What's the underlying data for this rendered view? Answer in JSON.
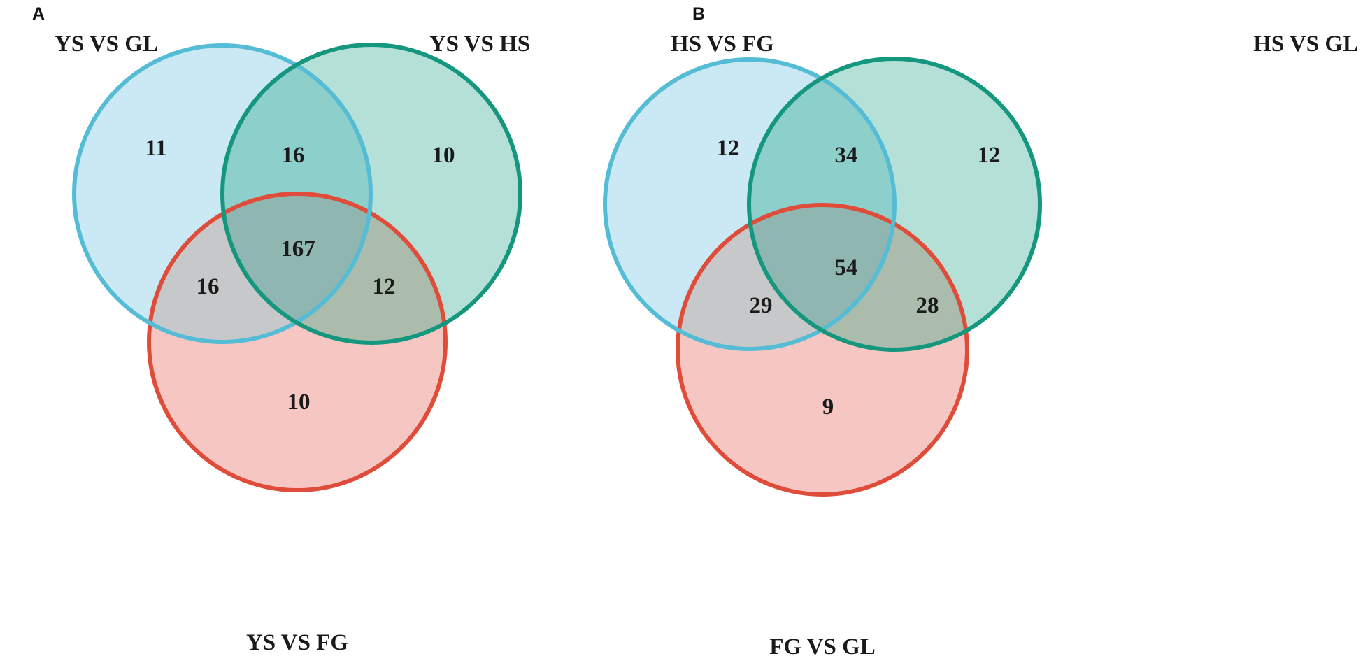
{
  "colors": {
    "blue_fill": "#cbe9f4",
    "blue_stroke": "#55bcd6",
    "green_fill": "#b4e0d7",
    "green_stroke": "#15977f",
    "red_fill": "#f6c7c2",
    "red_stroke": "#e04c3a",
    "blue_green_overlap": "#8ccfcb",
    "blue_red_overlap": "#c7c8ca",
    "green_red_overlap": "#abbcad",
    "all_overlap": "#8fb6b1"
  },
  "panels": [
    {
      "letter": "A",
      "sets": {
        "blue": "YS VS GL",
        "green": "YS VS HS",
        "red": "YS VS FG"
      },
      "counts": {
        "blue_only": "11",
        "green_only": "10",
        "red_only": "10",
        "blue_green": "16",
        "blue_red": "16",
        "green_red": "12",
        "all": "167"
      }
    },
    {
      "letter": "B",
      "sets": {
        "blue": "HS VS FG",
        "green": "HS VS GL",
        "red": "FG VS GL"
      },
      "counts": {
        "blue_only": "12",
        "green_only": "12",
        "red_only": "9",
        "blue_green": "34",
        "blue_red": "29",
        "green_red": "28",
        "all": "54"
      }
    }
  ]
}
